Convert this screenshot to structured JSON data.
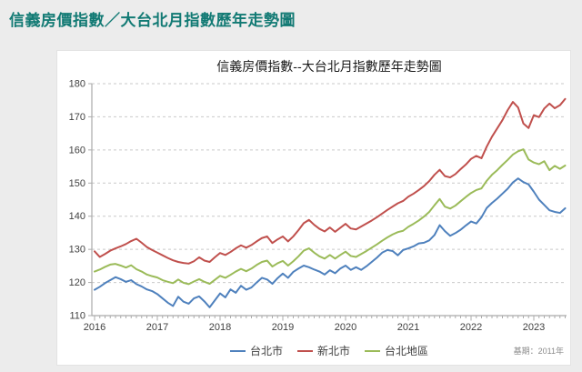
{
  "page": {
    "title": "信義房價指數／大台北月指數歷年走勢圖",
    "title_color": "#127A74",
    "background_color": "#ECECEC"
  },
  "chart": {
    "title": "信義房價指數--大台北月指數歷年走勢圖",
    "base_note": "基期：2011年",
    "legend_position": "bottom",
    "grid": true
  },
  "chart_data": {
    "type": "line",
    "title": "信義房價指數--大台北月指數歷年走勢圖",
    "x_start": "2016-01",
    "x_frequency": "monthly",
    "x_tick_labels": [
      "2016",
      "2017",
      "2018",
      "2019",
      "2020",
      "2021",
      "2022",
      "2023"
    ],
    "y_ticks": [
      110,
      120,
      130,
      140,
      150,
      160,
      170,
      180
    ],
    "ylim": [
      110,
      180
    ],
    "annotations": [
      "基期：2011年"
    ],
    "series": [
      {
        "name": "台北市",
        "color": "#4F81BD",
        "values": [
          117.8,
          118.7,
          119.8,
          120.7,
          121.6,
          121.0,
          120.2,
          120.7,
          119.5,
          118.8,
          117.9,
          117.4,
          116.5,
          115.2,
          113.9,
          112.9,
          115.7,
          114.2,
          113.6,
          115.2,
          115.8,
          114.3,
          112.5,
          114.6,
          116.7,
          115.5,
          117.9,
          116.9,
          119.0,
          117.8,
          118.5,
          120.0,
          121.4,
          120.9,
          119.6,
          121.3,
          122.7,
          121.4,
          123.2,
          124.2,
          125.1,
          124.6,
          123.9,
          123.3,
          122.4,
          123.7,
          122.8,
          124.2,
          125.1,
          123.8,
          124.6,
          123.8,
          124.9,
          126.2,
          127.5,
          129.0,
          129.8,
          129.5,
          128.2,
          129.8,
          130.3,
          130.9,
          131.8,
          132.0,
          132.7,
          134.3,
          137.3,
          135.5,
          134.1,
          134.9,
          135.9,
          137.2,
          138.4,
          137.8,
          139.7,
          142.5,
          144.0,
          145.3,
          146.8,
          148.3,
          150.2,
          151.4,
          150.3,
          149.6,
          147.4,
          145.0,
          143.4,
          141.8,
          141.3,
          141.0,
          142.4
        ]
      },
      {
        "name": "新北市",
        "color": "#C0504D",
        "values": [
          129.4,
          127.7,
          128.6,
          129.6,
          130.3,
          130.9,
          131.6,
          132.5,
          133.2,
          132.0,
          130.7,
          129.8,
          129.0,
          128.2,
          127.4,
          126.7,
          126.2,
          125.9,
          125.7,
          126.4,
          127.6,
          126.6,
          126.2,
          127.6,
          128.9,
          128.3,
          129.2,
          130.3,
          131.2,
          130.5,
          131.3,
          132.4,
          133.4,
          133.9,
          131.9,
          133.0,
          133.9,
          132.4,
          133.9,
          135.8,
          137.9,
          138.9,
          137.4,
          136.2,
          135.4,
          136.6,
          135.3,
          136.5,
          137.7,
          136.3,
          136.0,
          136.9,
          137.8,
          138.7,
          139.7,
          140.8,
          141.9,
          142.9,
          143.9,
          144.6,
          145.9,
          146.8,
          147.9,
          149.1,
          150.6,
          152.5,
          154.0,
          152.1,
          151.7,
          152.7,
          154.2,
          155.6,
          157.3,
          158.2,
          157.5,
          161.0,
          164.0,
          166.5,
          169.0,
          172.0,
          174.5,
          172.8,
          168.0,
          166.6,
          170.5,
          169.9,
          172.5,
          174.0,
          172.6,
          173.5,
          175.4
        ]
      },
      {
        "name": "台北地區",
        "color": "#9BBB59",
        "values": [
          123.3,
          123.9,
          124.7,
          125.4,
          125.6,
          125.1,
          124.5,
          125.2,
          124.0,
          123.3,
          122.4,
          121.9,
          121.5,
          120.7,
          120.2,
          119.8,
          120.9,
          119.9,
          119.5,
          120.3,
          121.0,
          120.2,
          119.6,
          120.8,
          122.0,
          121.4,
          122.3,
          123.3,
          124.1,
          123.4,
          124.2,
          125.3,
          126.2,
          126.6,
          124.8,
          125.8,
          126.5,
          125.1,
          126.4,
          127.9,
          129.6,
          130.3,
          129.0,
          127.9,
          127.2,
          128.3,
          127.2,
          128.3,
          129.3,
          128.0,
          127.7,
          128.6,
          129.5,
          130.5,
          131.5,
          132.6,
          133.6,
          134.5,
          135.2,
          135.6,
          136.8,
          137.7,
          138.7,
          139.9,
          141.3,
          143.3,
          145.2,
          142.9,
          142.3,
          143.2,
          144.5,
          145.8,
          147.0,
          147.9,
          148.4,
          150.7,
          152.5,
          153.9,
          155.5,
          157.0,
          158.6,
          159.6,
          160.2,
          157.1,
          156.2,
          155.7,
          156.6,
          153.9,
          155.2,
          154.3,
          155.3
        ]
      }
    ]
  }
}
